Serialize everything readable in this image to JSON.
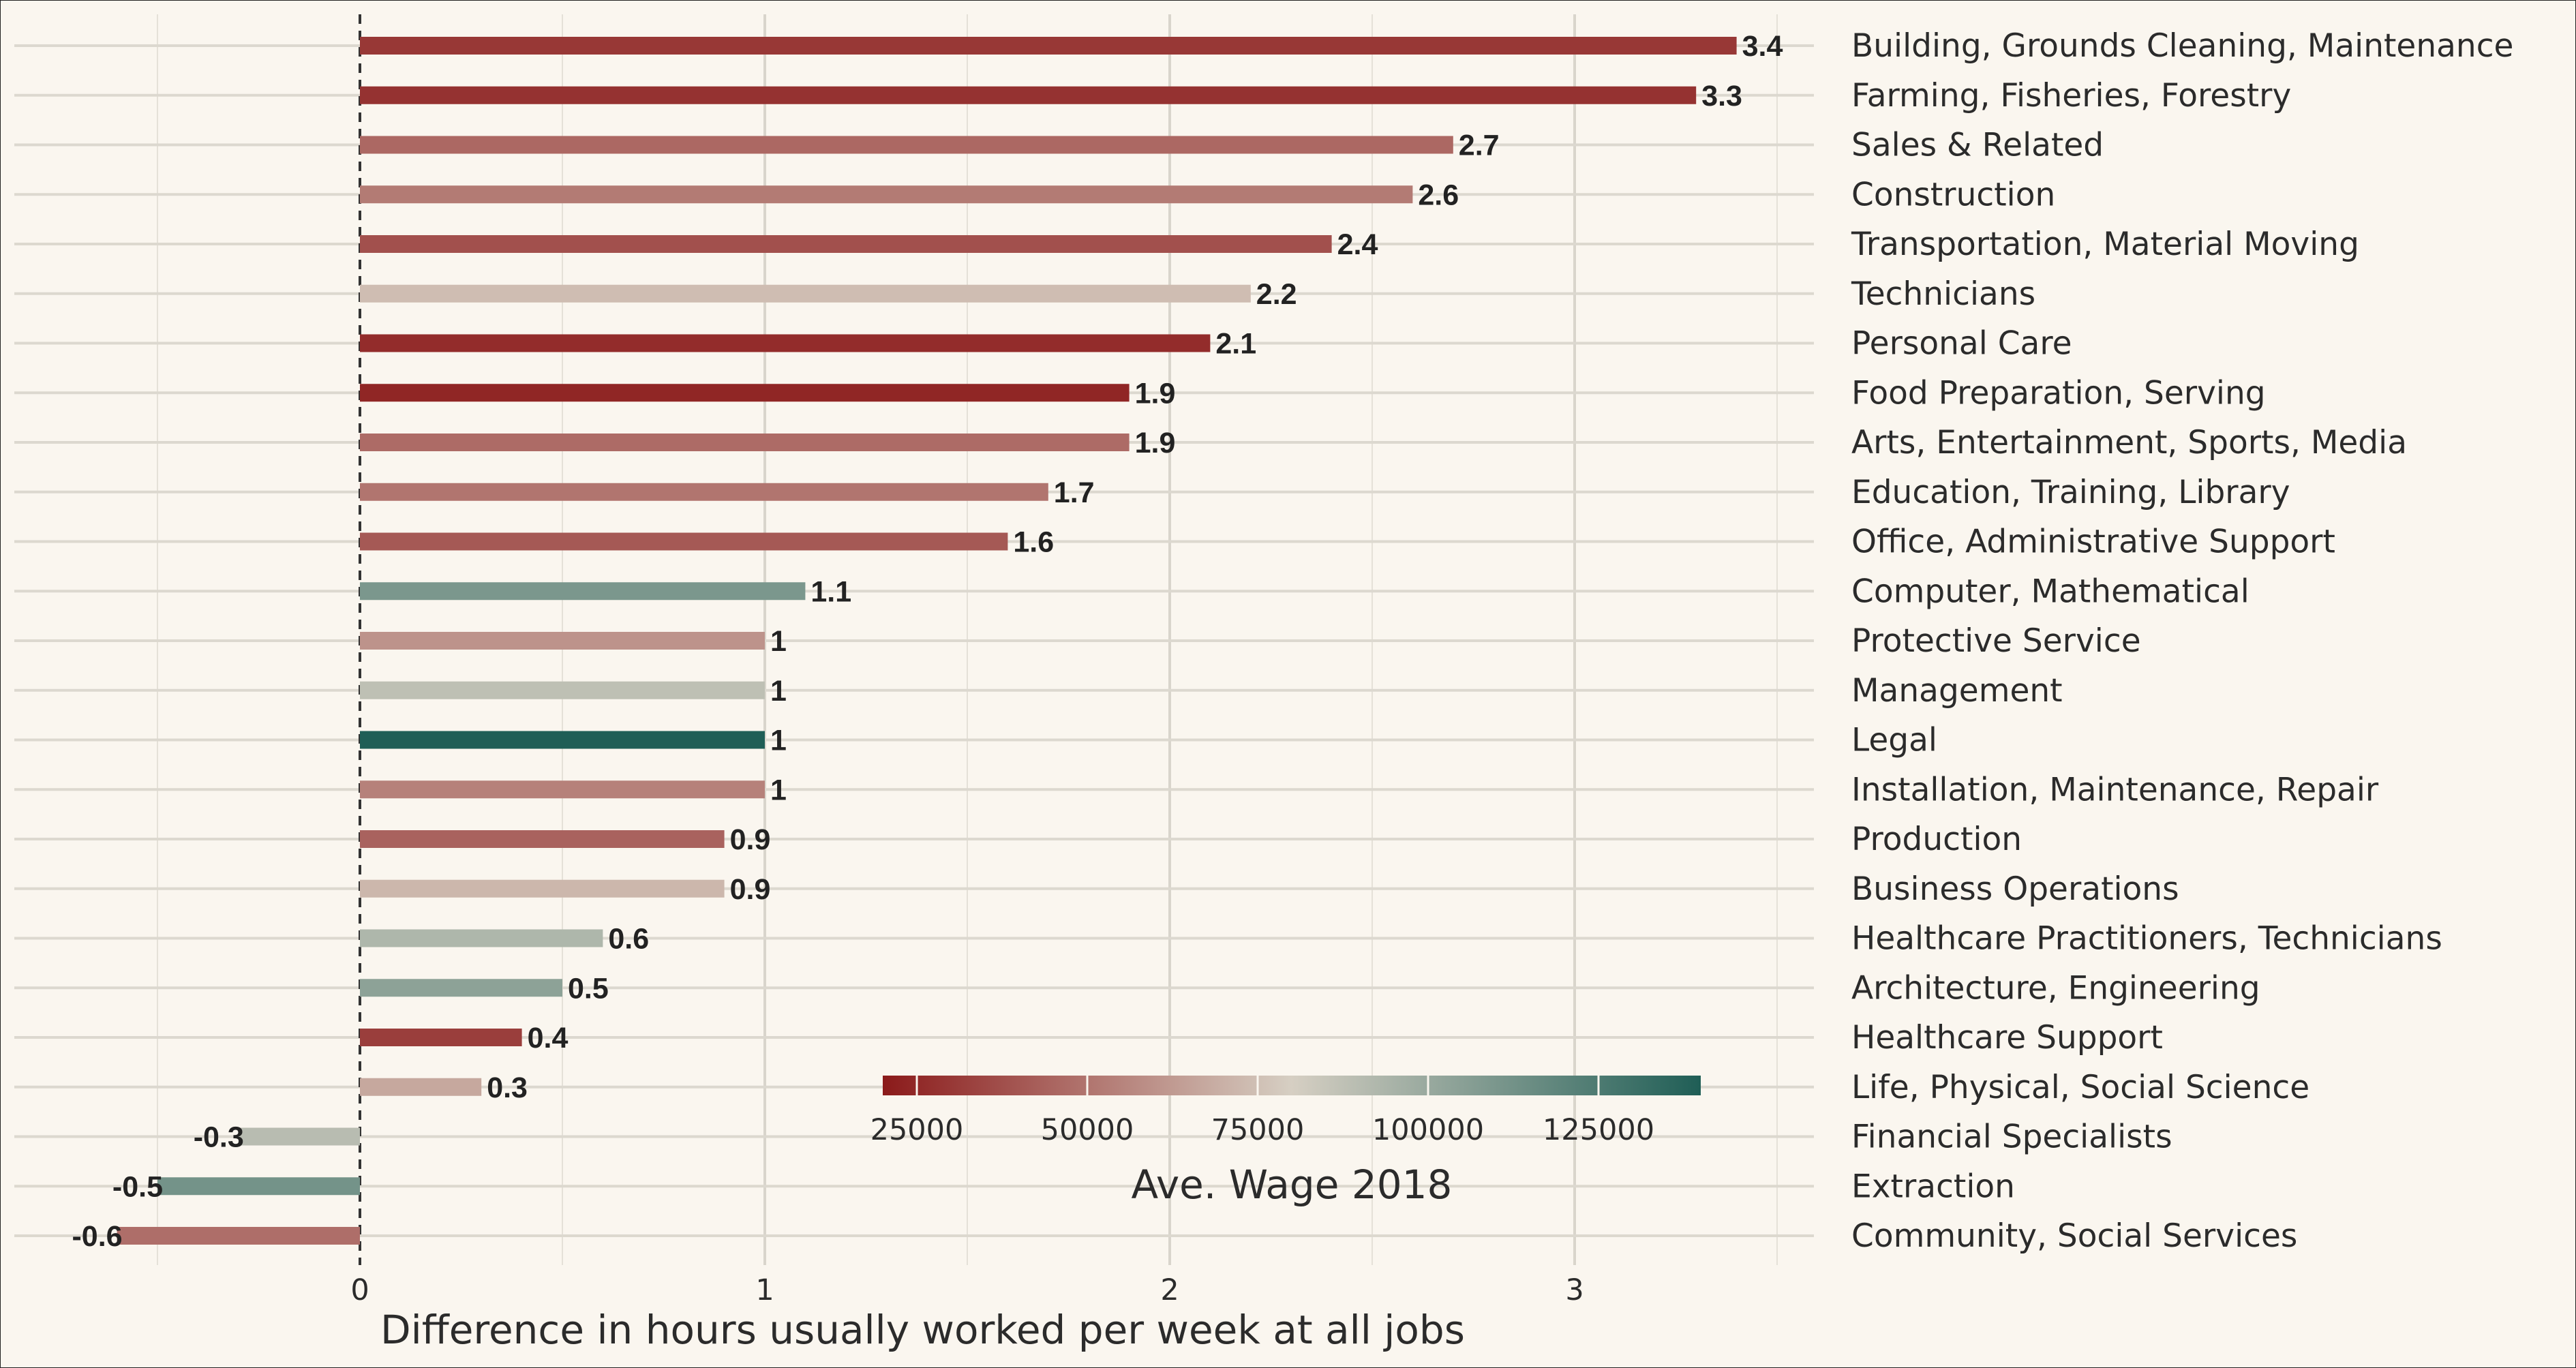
{
  "chart_data": {
    "type": "bar",
    "orientation": "horizontal",
    "xlabel": "Difference in hours usually worked per week at all jobs",
    "xlim": [
      -0.85,
      3.55
    ],
    "x_ticks": [
      0,
      1,
      2,
      3
    ],
    "reference_line": 0,
    "grid": true,
    "categories": [
      "Building, Grounds Cleaning, Maintenance",
      "Farming, Fisheries, Forestry",
      "Sales & Related",
      "Construction",
      "Transportation, Material Moving",
      "Technicians",
      "Personal Care",
      "Food Preparation, Serving",
      "Arts, Entertainment, Sports, Media",
      "Education, Training, Library",
      "Office, Administrative Support",
      "Computer, Mathematical",
      "Protective Service",
      "Management",
      "Legal",
      "Installation, Maintenance, Repair",
      "Production",
      "Business Operations",
      "Healthcare Practitioners, Technicians",
      "Architecture, Engineering",
      "Healthcare Support",
      "Life, Physical, Social Science",
      "Financial Specialists",
      "Extraction",
      "Community, Social Services"
    ],
    "values": [
      3.4,
      3.3,
      2.7,
      2.6,
      2.4,
      2.2,
      2.1,
      1.9,
      1.9,
      1.7,
      1.6,
      1.1,
      1,
      1,
      1,
      1,
      0.9,
      0.9,
      0.6,
      0.5,
      0.4,
      0.3,
      -0.3,
      -0.5,
      -0.6
    ],
    "value_labels": [
      "3.4",
      "3.3",
      "2.7",
      "2.6",
      "2.4",
      "2.2",
      "2.1",
      "1.9",
      "1.9",
      "1.7",
      "1.6",
      "1.1",
      "1",
      "1",
      "1",
      "1",
      "0.9",
      "0.9",
      "0.6",
      "0.5",
      "0.4",
      "0.3",
      "-0.3",
      "-0.5",
      "-0.6"
    ],
    "wages": [
      30000,
      28000,
      46000,
      52000,
      38000,
      74000,
      26000,
      24000,
      47000,
      50000,
      41000,
      110000,
      60000,
      88000,
      140000,
      54000,
      44000,
      72000,
      93000,
      104000,
      32000,
      67000,
      90000,
      112000,
      48000
    ],
    "color_legend": {
      "title": "Ave. Wage 2018",
      "range": [
        20000,
        140000
      ],
      "ticks": [
        25000,
        50000,
        75000,
        100000,
        125000
      ],
      "tick_labels": [
        "25000",
        "50000",
        "75000",
        "100000",
        "125000"
      ],
      "colors": [
        "#8b1a1a",
        "#d6cfc3",
        "#1f5e56"
      ]
    }
  }
}
